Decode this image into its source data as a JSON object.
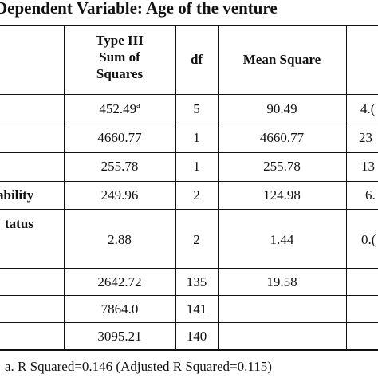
{
  "title": "Dependent Variable: Age of the venture",
  "columns": {
    "sum_of_squares": [
      "Type III",
      "Sum of",
      "Squares"
    ],
    "df": "df",
    "mean_square": "Mean Square"
  },
  "rows": [
    {
      "source": "",
      "ss": "452.49",
      "ss_sup": "a",
      "df": "5",
      "ms": "90.49",
      "f": "4.("
    },
    {
      "source": "",
      "ss": "4660.77",
      "df": "1",
      "ms": "4660.77",
      "f": "23"
    },
    {
      "source": "",
      "ss": "255.78",
      "df": "1",
      "ms": "255.78",
      "f": "13"
    },
    {
      "source": "ability",
      "ss": "249.96",
      "df": "2",
      "ms": "124.98",
      "f": "6."
    },
    {
      "source": "tatus",
      "ss": "2.88",
      "df": "2",
      "ms": "1.44",
      "f": "0.("
    },
    {
      "source": "",
      "ss": "2642.72",
      "df": "135",
      "ms": "19.58",
      "f": ""
    },
    {
      "source": "",
      "ss": "7864.0",
      "df": "141",
      "ms": "",
      "f": ""
    },
    {
      "source": "",
      "ss": "3095.21",
      "df": "140",
      "ms": "",
      "f": ""
    }
  ],
  "footnote": "a. R Squared=0.146 (Adjusted R Squared=0.115)"
}
